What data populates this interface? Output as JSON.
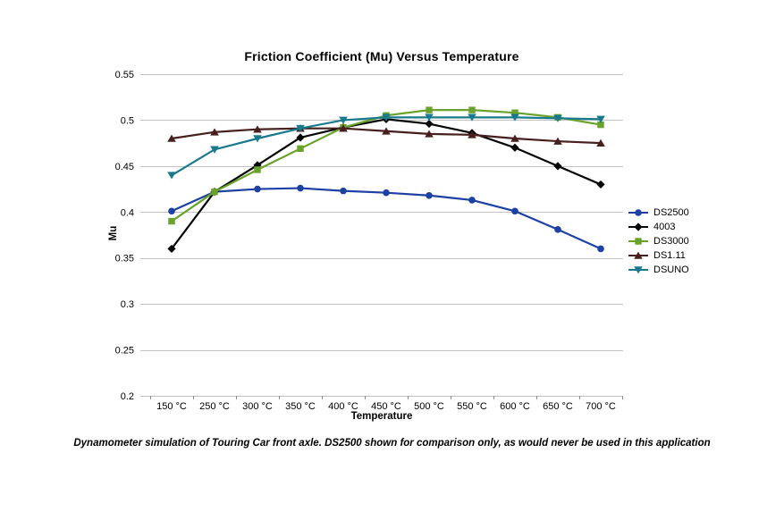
{
  "chart_data": {
    "type": "line",
    "title": "Friction Coefficient (Mu) Versus Temperature",
    "xlabel": "Temperature",
    "ylabel": "Mu",
    "categories": [
      "150 °C",
      "250 °C",
      "300 °C",
      "350 °C",
      "400 °C",
      "450 °C",
      "500 °C",
      "550 °C",
      "600 °C",
      "650 °C",
      "700 °C"
    ],
    "ylim": [
      0.2,
      0.55
    ],
    "y_ticks": [
      0.55,
      0.5,
      0.45,
      0.4,
      0.35,
      0.3,
      0.25,
      0.2
    ],
    "grid": "horizontal-only",
    "legend_position": "right",
    "series": [
      {
        "name": "DS2500",
        "marker": "circle",
        "color": "#1C40A4",
        "values": [
          0.401,
          0.422,
          0.425,
          0.426,
          0.423,
          0.421,
          0.418,
          0.413,
          0.401,
          0.381,
          0.36
        ]
      },
      {
        "name": "4003",
        "marker": "diamond",
        "color": "#060606",
        "values": [
          0.36,
          0.422,
          0.451,
          0.481,
          0.492,
          0.501,
          0.496,
          0.486,
          0.47,
          0.45,
          0.43
        ]
      },
      {
        "name": "DS3000",
        "marker": "square",
        "color": "#69A32B",
        "values": [
          0.39,
          0.422,
          0.446,
          0.469,
          0.492,
          0.505,
          0.511,
          0.511,
          0.508,
          0.503,
          0.495
        ]
      },
      {
        "name": "DS1.11",
        "marker": "triangle-up",
        "color": "#47201E",
        "values": [
          0.48,
          0.487,
          0.49,
          0.491,
          0.491,
          0.488,
          0.485,
          0.484,
          0.48,
          0.477,
          0.475
        ]
      },
      {
        "name": "DSUNO",
        "marker": "triangle-down",
        "color": "#187A8C",
        "values": [
          0.44,
          0.468,
          0.48,
          0.491,
          0.5,
          0.503,
          0.503,
          0.503,
          0.503,
          0.502,
          0.501
        ]
      }
    ]
  },
  "caption": "Dynamometer simulation of Touring Car front axle. DS2500 shown for comparison only, as would never be used in this application",
  "colors": {
    "background": "#FFFFFF",
    "gridline": "#C3C3C3",
    "axis_tick": "#8C8C8C",
    "text": "#000000"
  }
}
